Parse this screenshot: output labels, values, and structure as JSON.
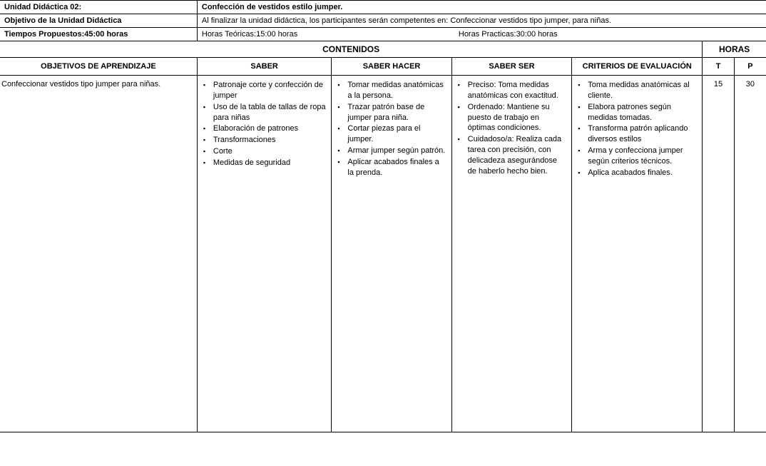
{
  "header": {
    "unidad_label": "Unidad Didáctica 02:",
    "unidad_value": "Confección de vestidos estilo jumper.",
    "objetivo_label": "Objetivo de la Unidad Didáctica",
    "objetivo_value": "Al finalizar la unidad didáctica, los participantes serán competentes en: Confeccionar vestidos tipo jumper, para niñas.",
    "tiempos_label": "Tiempos Propuestos:45:00 horas",
    "horas_teoricas": "Horas Teóricas:15:00 horas",
    "horas_practicas": "Horas Practicas:30:00 horas"
  },
  "section": {
    "contenidos": "CONTENIDOS",
    "horas": "HORAS"
  },
  "columns": {
    "objetivos": "OBJETIVOS DE APRENDIZAJE",
    "saber": "SABER",
    "saber_hacer": "SABER HACER",
    "saber_ser": "SABER SER",
    "criterios": "CRITERIOS DE EVALUACIÓN",
    "t": "T",
    "p": "P"
  },
  "row": {
    "objetivo": "Confeccionar vestidos tipo jumper para niñas.",
    "saber": [
      "Patronaje corte y confección de jumper",
      "Uso de la tabla de tallas de ropa para niñas",
      "Elaboración de patrones",
      "Transformaciones",
      "Corte",
      "Medidas de seguridad"
    ],
    "saber_hacer": [
      "Tomar medidas anatómicas a la persona.",
      "Trazar patrón base de jumper  para niña.",
      "Cortar piezas para el jumper.",
      "Armar jumper según patrón.",
      "Aplicar acabados finales a la prenda."
    ],
    "saber_ser": [
      "Preciso: Toma medidas anatómicas con exactitud.",
      "Ordenado: Mantiene su puesto de trabajo en óptimas condiciones.",
      "Cuidadoso/a: Realiza cada tarea con precisión, con delicadeza asegurándose de haberlo hecho bien."
    ],
    "criterios": [
      "Toma medidas anatómicas al cliente.",
      "Elabora patrones según medidas tomadas.",
      "Transforma patrón aplicando diversos estilos",
      "Arma y confecciona jumper según criterios técnicos.",
      "Aplica acabados finales."
    ],
    "t": "15",
    "p": "30"
  }
}
